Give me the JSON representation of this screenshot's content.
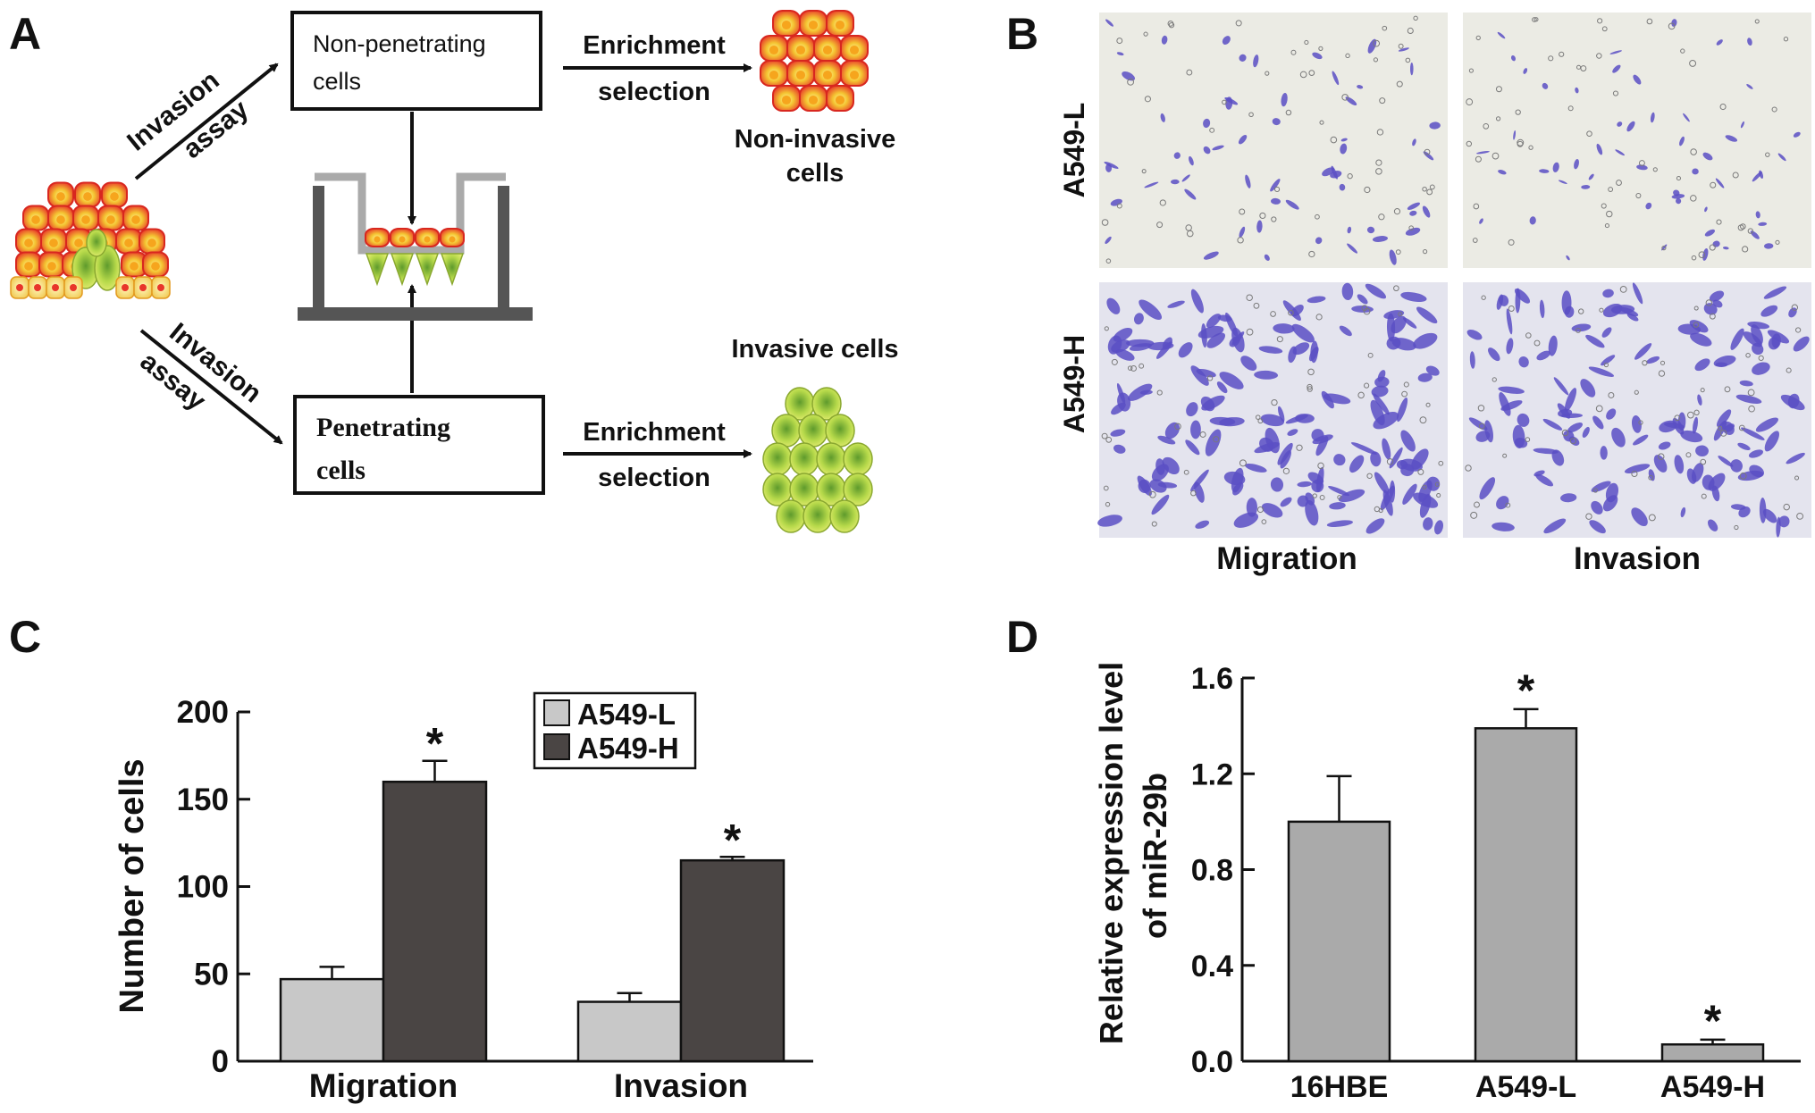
{
  "panels": {
    "a": {
      "letter": "A",
      "arrow_top": [
        "Invasion",
        "assay"
      ],
      "arrow_bottom": [
        "Invasion",
        "assay"
      ],
      "box_top": [
        "Non-penetrating",
        "cells"
      ],
      "box_bottom": [
        "Penetrating",
        "cells"
      ],
      "enrich_top": [
        "Enrichment",
        "selection"
      ],
      "enrich_bottom": [
        "Enrichment",
        "selection"
      ],
      "result_top": [
        "Non-invasive",
        "cells"
      ],
      "result_bottom": "Invasive cells"
    },
    "b": {
      "letter": "B",
      "rows": [
        "A549-L",
        "A549-H"
      ],
      "cols": [
        "Migration",
        "Invasion"
      ]
    },
    "c": {
      "letter": "C"
    },
    "d": {
      "letter": "D"
    }
  },
  "colors": {
    "light_bar": "#c8c8c8",
    "dark_bar": "#4a4544",
    "gray_bar": "#aaaaaa",
    "stain": "#5a4fc4",
    "cell_red": "#e8352a",
    "cell_yellow": "#f2dd40",
    "cell_green": "#8cc63f"
  },
  "chart_data": [
    {
      "id": "C",
      "type": "bar",
      "ylabel": "Number of cells",
      "xlabel": "",
      "ylim": [
        0,
        200
      ],
      "yticks": [
        0,
        50,
        100,
        150,
        200
      ],
      "categories": [
        "Migration",
        "Invasion"
      ],
      "series": [
        {
          "name": "A549-L",
          "values": [
            47,
            34
          ],
          "errors": [
            7,
            5
          ],
          "color": "#c8c8c8"
        },
        {
          "name": "A549-H",
          "values": [
            160,
            115
          ],
          "errors": [
            12,
            2
          ],
          "color": "#4a4544"
        }
      ],
      "annotations": [
        {
          "category": "Migration",
          "series": "A549-H",
          "text": "*"
        },
        {
          "category": "Invasion",
          "series": "A549-H",
          "text": "*"
        }
      ],
      "legend": "top-right"
    },
    {
      "id": "D",
      "type": "bar",
      "ylabel": "Relative expression level of miR-29b",
      "ylabel_lines": [
        "Relative expression level",
        "of miR-29b"
      ],
      "xlabel": "",
      "ylim": [
        0,
        1.6
      ],
      "yticks": [
        "0.0",
        "0.4",
        "0.8",
        "1.2",
        "1.6"
      ],
      "categories": [
        "16HBE",
        "A549-L",
        "A549-H"
      ],
      "values": [
        1.0,
        1.39,
        0.07
      ],
      "errors": [
        0.19,
        0.08,
        0.02
      ],
      "color": "#aaaaaa",
      "annotations": [
        {
          "category": "A549-L",
          "text": "*"
        },
        {
          "category": "A549-H",
          "text": "*"
        }
      ]
    }
  ]
}
